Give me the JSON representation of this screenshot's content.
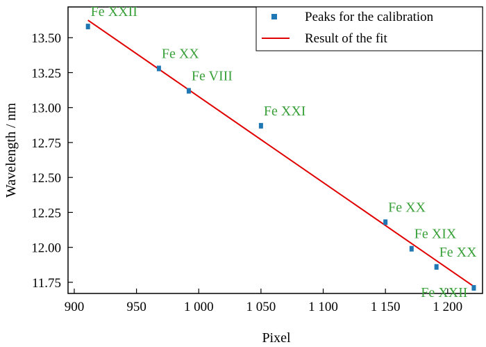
{
  "chart_data": {
    "type": "scatter",
    "title": "",
    "xlabel": "Pixel",
    "ylabel": "Wavelength / nm",
    "xlim": [
      895,
      1228
    ],
    "ylim": [
      11.67,
      13.72
    ],
    "x_ticks": [
      900,
      950,
      1000,
      1050,
      1100,
      1150,
      1200
    ],
    "x_tick_labels": [
      "900",
      "950",
      "1 000",
      "1 050",
      "1 100",
      "1 150",
      "1 200"
    ],
    "y_ticks": [
      11.75,
      12.0,
      12.25,
      12.5,
      12.75,
      13.0,
      13.25,
      13.5
    ],
    "y_tick_labels": [
      "11.75",
      "12.00",
      "12.25",
      "12.50",
      "12.75",
      "13.00",
      "13.25",
      "13.50"
    ],
    "grid": false,
    "legend_position": "top-right",
    "series": [
      {
        "name": "Peaks for the calibration",
        "kind": "points",
        "color": "#1f77b4",
        "points": [
          {
            "x": 911,
            "y": 13.58
          },
          {
            "x": 968,
            "y": 13.28
          },
          {
            "x": 992,
            "y": 13.12
          },
          {
            "x": 1050,
            "y": 12.87
          },
          {
            "x": 1150,
            "y": 12.18
          },
          {
            "x": 1171,
            "y": 11.99
          },
          {
            "x": 1191,
            "y": 11.86
          },
          {
            "x": 1221,
            "y": 11.71
          }
        ]
      },
      {
        "name": "Result of the fit",
        "kind": "line",
        "color": "#e00000",
        "points": [
          {
            "x": 911,
            "y": 13.625
          },
          {
            "x": 1221,
            "y": 11.72
          }
        ]
      }
    ],
    "annotations": [
      {
        "text": "Fe XXII",
        "x": 911,
        "y": 13.58,
        "anchor": "above-right"
      },
      {
        "text": "Fe XX",
        "x": 968,
        "y": 13.28,
        "anchor": "above-right"
      },
      {
        "text": "Fe VIII",
        "x": 992,
        "y": 13.12,
        "anchor": "above-right"
      },
      {
        "text": "Fe XXI",
        "x": 1050,
        "y": 12.87,
        "anchor": "above-right"
      },
      {
        "text": "Fe XX",
        "x": 1150,
        "y": 12.18,
        "anchor": "above-right"
      },
      {
        "text": "Fe XIX",
        "x": 1171,
        "y": 11.99,
        "anchor": "above-right"
      },
      {
        "text": "Fe XX",
        "x": 1191,
        "y": 11.86,
        "anchor": "above-right"
      },
      {
        "text": "Fe XXII",
        "x": 1221,
        "y": 11.71,
        "anchor": "below-left"
      }
    ],
    "annotation_color": "#3aa03a"
  }
}
